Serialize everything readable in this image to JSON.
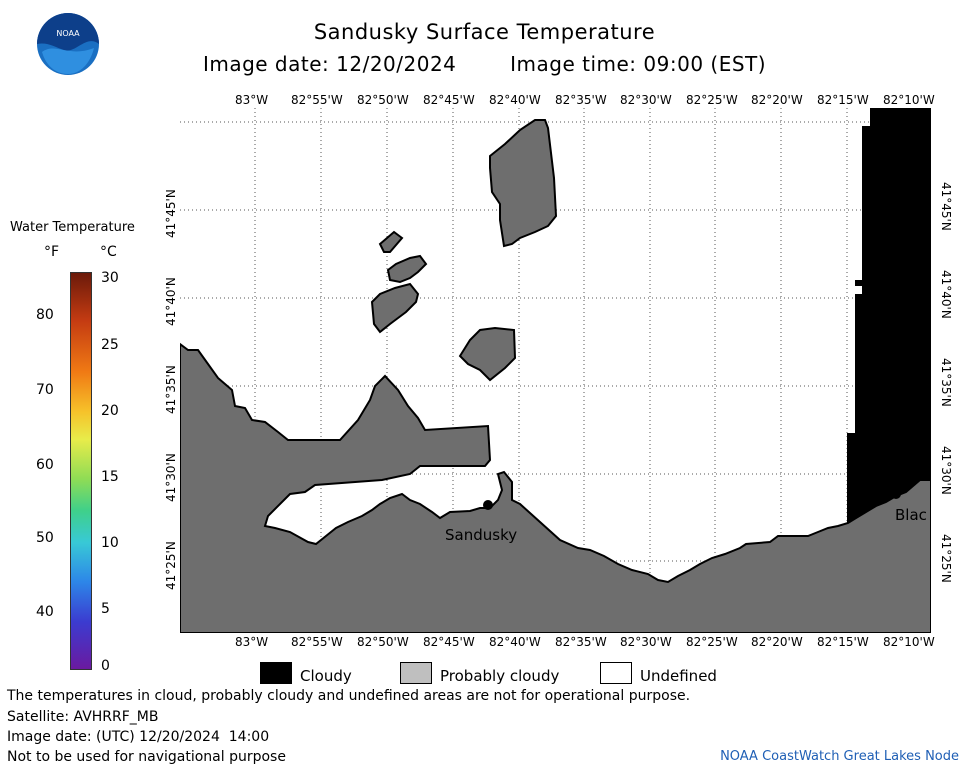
{
  "header": {
    "title": "Sandusky Surface Temperature",
    "image_date": "Image date: 12/20/2024",
    "image_time": "Image time: 09:00 (EST)"
  },
  "logo": {
    "text": "NOAA"
  },
  "temperature_scale": {
    "title": "Water Temperature",
    "unit_f": "°F",
    "unit_c": "°C",
    "f_ticks": [
      "80",
      "70",
      "60",
      "50",
      "40"
    ],
    "c_ticks": [
      "30",
      "25",
      "20",
      "15",
      "10",
      "5",
      "0"
    ]
  },
  "map": {
    "lon_labels": [
      "83°W",
      "82°55'W",
      "82°50'W",
      "82°45'W",
      "82°40'W",
      "82°35'W",
      "82°30'W",
      "82°25'W",
      "82°20'W",
      "82°15'W",
      "82°10'W"
    ],
    "lat_labels": [
      "41°45'N",
      "41°40'N",
      "41°35'N",
      "41°30'N",
      "41°25'N"
    ],
    "city_labels": {
      "sandusky": "Sandusky",
      "blac": "Blac"
    }
  },
  "legend": {
    "cloudy": "Cloudy",
    "probably_cloudy": "Probably cloudy",
    "undefined": "Undefined",
    "colors": {
      "cloudy": "#000000",
      "probably_cloudy": "#bfbfbf",
      "undefined": "#ffffff",
      "land": "#6e6e6e"
    }
  },
  "footer": {
    "disclaimer": "The temperatures in cloud, probably cloudy and undefined areas are not for operational purpose.",
    "satellite": "Satellite: AVHRRF_MB",
    "utc_date": "Image date: (UTC) 12/20/2024  14:00",
    "nav_warning": "Not to be used for navigational purpose",
    "credit": "NOAA CoastWatch Great Lakes Node"
  }
}
